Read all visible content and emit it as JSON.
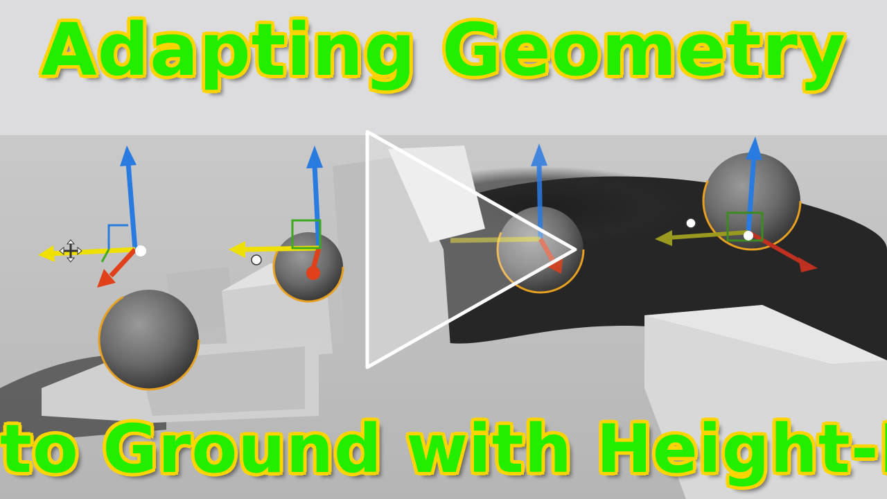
{
  "thumbnail": {
    "title_line_1": "Adapting Geometry",
    "title_line_2": "to Ground with Height-Map"
  },
  "icons": {
    "play": "play-icon",
    "move": "move-cross-icon",
    "hand": "hand-icon",
    "gizmo": "transform-gizmo-icon"
  },
  "colors": {
    "title_fill": "#22ee00",
    "title_outline": "#ff2a00",
    "title_glow": "#ffd400",
    "gizmo_z": "#2a7be0",
    "gizmo_x": "#e0401a",
    "gizmo_y": "#f0e000",
    "selection": "#e8a020"
  }
}
